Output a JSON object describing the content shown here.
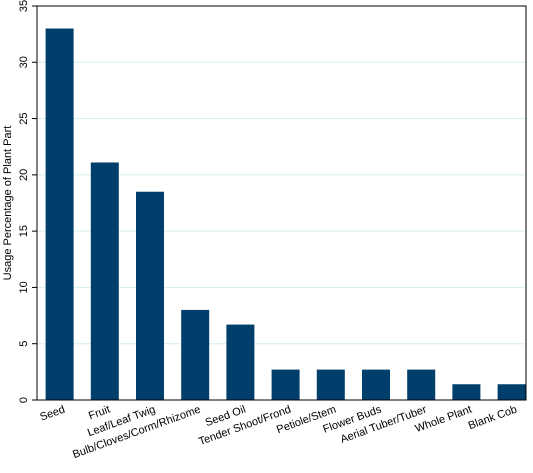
{
  "chart_data": {
    "type": "bar",
    "title": "",
    "xlabel": "",
    "ylabel": "Usage Percentage of Plant Part",
    "ylim": [
      0,
      35
    ],
    "yticks": [
      0,
      5,
      10,
      15,
      20,
      25,
      30,
      35
    ],
    "grid": "horizontal",
    "legend": "none",
    "bar_color": "#003e6b",
    "grid_color": "#d6eef0",
    "categories": [
      "Seed",
      "Fruit",
      "Leaf/Leaf Twig",
      "Bulb/Cloves/Corm/Rhizome",
      "Seed Oil",
      "Tender Shoot/Frond",
      "Petiole/Stem",
      "Flower Buds",
      "Aerial Tuber/Tuber",
      "Whole Plant",
      "Blank Cob"
    ],
    "values": [
      33.0,
      21.1,
      18.5,
      8.0,
      6.7,
      2.7,
      2.7,
      2.7,
      2.7,
      1.4,
      1.4
    ]
  }
}
